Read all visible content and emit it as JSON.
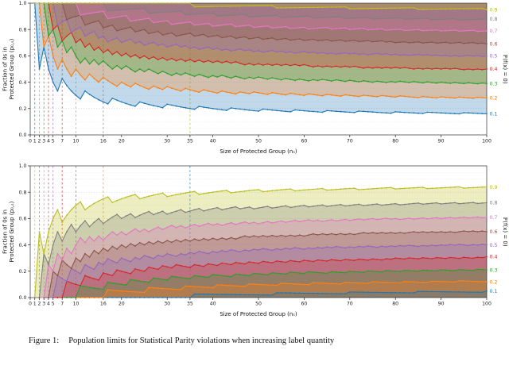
{
  "figure": {
    "caption_label": "Figure 1:",
    "caption_text": "Population limits for Statistical Parity violations when increasing label quantity"
  },
  "chart_data": [
    {
      "type": "line",
      "bound": "upper",
      "description": "Worst-case (maximum) fraction of 0s in the protected group vs group size; one jagged sawtooth curve per label probability p = P(f(x)=0); each curve is the binomial upper quantile bound at alpha and is filled translucently up to y = 1",
      "alpha": 0.025,
      "fill_to": 1,
      "fill_order": "asc",
      "fill_alpha": 0.28,
      "x_range": [
        0,
        100
      ],
      "y_range": [
        0,
        1
      ],
      "x_ticks": [
        0,
        1,
        2,
        3,
        4,
        5,
        7,
        10,
        16,
        20,
        30,
        35,
        40,
        50,
        60,
        70,
        80,
        90,
        100
      ],
      "y_ticks": [
        0,
        0.2,
        0.4,
        0.6,
        0.8,
        1.0
      ],
      "y_tick_labels": [
        "0.0",
        "0.2",
        "0.4",
        "0.6",
        "0.8",
        "1.0"
      ],
      "xlabel": "Size of Protected Group (nₛ)",
      "ylabel_lines": [
        "Fraction of 0s in",
        "Protected Group (p₀,ₛ)"
      ],
      "right_axis_label": "ℙ(f(x) = 0)",
      "series": [
        {
          "label": "0.1",
          "p": 0.1,
          "color": "#1f77b4",
          "vline_x": 1,
          "start_value": 1.0,
          "end_value": 0.16
        },
        {
          "label": "0.2",
          "p": 0.2,
          "color": "#ff7f0e",
          "vline_x": 2,
          "start_value": 1.0,
          "end_value": 0.28
        },
        {
          "label": "0.3",
          "p": 0.3,
          "color": "#2ca02c",
          "vline_x": 3,
          "start_value": 1.0,
          "end_value": 0.39
        },
        {
          "label": "0.4",
          "p": 0.4,
          "color": "#d62728",
          "vline_x": 4,
          "start_value": 1.0,
          "end_value": 0.49
        },
        {
          "label": "0.5",
          "p": 0.5,
          "color": "#9467bd",
          "vline_x": 5,
          "start_value": 1.0,
          "end_value": 0.59
        },
        {
          "label": "0.6",
          "p": 0.6,
          "color": "#8c564b",
          "vline_x": 7,
          "start_value": 1.0,
          "end_value": 0.69
        },
        {
          "label": "0.7",
          "p": 0.7,
          "color": "#e377c2",
          "vline_x": 10,
          "start_value": 1.0,
          "end_value": 0.79
        },
        {
          "label": "0.8",
          "p": 0.8,
          "color": "#7f7f7f",
          "vline_x": 16,
          "start_value": 1.0,
          "end_value": 0.88
        },
        {
          "label": "0.9",
          "p": 0.9,
          "color": "#bcbd22",
          "vline_x": 35,
          "start_value": 1.0,
          "end_value": 0.96
        }
      ]
    },
    {
      "type": "line",
      "bound": "lower",
      "description": "Worst-case (minimum) fraction of 0s in the protected group vs group size; one jagged sawtooth curve per label probability p = P(f(x)=0); each curve is the binomial lower quantile bound at alpha and is filled translucently down to y = 0",
      "alpha": 0.025,
      "fill_to": 0,
      "fill_order": "desc",
      "fill_alpha": 0.28,
      "x_range": [
        0,
        100
      ],
      "y_range": [
        0,
        1
      ],
      "x_ticks": [
        0,
        1,
        2,
        3,
        4,
        5,
        7,
        10,
        16,
        20,
        30,
        35,
        40,
        50,
        60,
        70,
        80,
        90,
        100
      ],
      "y_ticks": [
        0,
        0.2,
        0.4,
        0.6,
        0.8,
        1.0
      ],
      "y_tick_labels": [
        "0.0",
        "0.2",
        "0.4",
        "0.6",
        "0.8",
        "1.0"
      ],
      "xlabel": "Size of Protected Group (nₛ)",
      "ylabel_lines": [
        "Fraction of 0s in",
        "Protected Group (p₀,ₛ)"
      ],
      "right_axis_label": "ℙ(f(x) = 0)",
      "series": [
        {
          "label": "0.1",
          "p": 0.1,
          "color": "#1f77b4",
          "vline_x": 35,
          "start_value": 0.0,
          "end_value": 0.04
        },
        {
          "label": "0.2",
          "p": 0.2,
          "color": "#ff7f0e",
          "vline_x": 16,
          "start_value": 0.0,
          "end_value": 0.12
        },
        {
          "label": "0.3",
          "p": 0.3,
          "color": "#2ca02c",
          "vline_x": 10,
          "start_value": 0.0,
          "end_value": 0.21
        },
        {
          "label": "0.4",
          "p": 0.4,
          "color": "#d62728",
          "vline_x": 7,
          "start_value": 0.0,
          "end_value": 0.31
        },
        {
          "label": "0.5",
          "p": 0.5,
          "color": "#9467bd",
          "vline_x": 5,
          "start_value": 0.0,
          "end_value": 0.41
        },
        {
          "label": "0.6",
          "p": 0.6,
          "color": "#8c564b",
          "vline_x": 4,
          "start_value": 0.0,
          "end_value": 0.51
        },
        {
          "label": "0.7",
          "p": 0.7,
          "color": "#e377c2",
          "vline_x": 3,
          "start_value": 0.0,
          "end_value": 0.61
        },
        {
          "label": "0.8",
          "p": 0.8,
          "color": "#7f7f7f",
          "vline_x": 2,
          "start_value": 0.0,
          "end_value": 0.72
        },
        {
          "label": "0.9",
          "p": 0.9,
          "color": "#bcbd22",
          "vline_x": 1,
          "start_value": 0.0,
          "end_value": 0.84
        }
      ]
    }
  ]
}
